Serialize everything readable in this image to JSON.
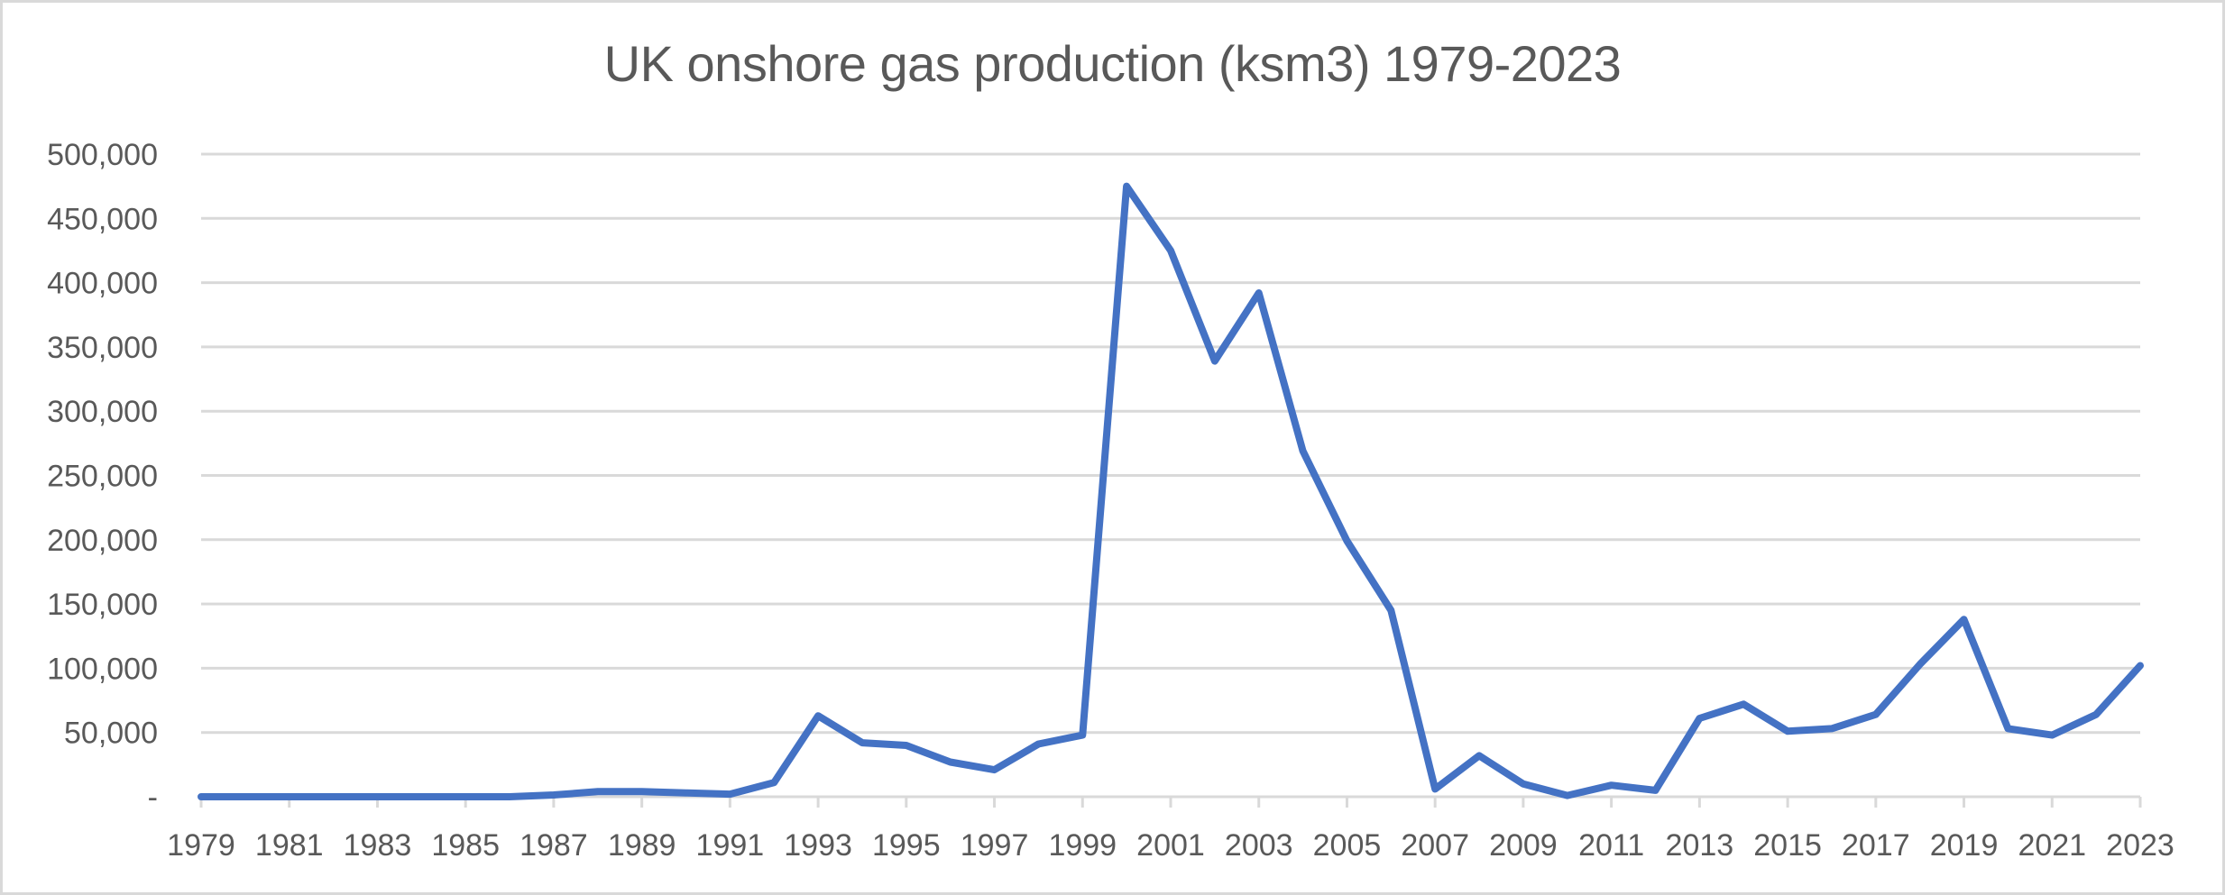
{
  "chart_data": {
    "type": "line",
    "title": "UK onshore gas production (ksm3) 1979-2023",
    "xlabel": "",
    "ylabel": "",
    "ylim": [
      0,
      500000
    ],
    "grid": true,
    "legend": null,
    "y_ticks": [
      {
        "value": 0,
        "label": "-"
      },
      {
        "value": 50000,
        "label": "50,000"
      },
      {
        "value": 100000,
        "label": "100,000"
      },
      {
        "value": 150000,
        "label": "150,000"
      },
      {
        "value": 200000,
        "label": "200,000"
      },
      {
        "value": 250000,
        "label": "250,000"
      },
      {
        "value": 300000,
        "label": "300,000"
      },
      {
        "value": 350000,
        "label": "350,000"
      },
      {
        "value": 400000,
        "label": "400,000"
      },
      {
        "value": 450000,
        "label": "450,000"
      },
      {
        "value": 500000,
        "label": "500,000"
      }
    ],
    "x_tick_labels": [
      "1979",
      "1981",
      "1983",
      "1985",
      "1987",
      "1989",
      "1991",
      "1993",
      "1995",
      "1997",
      "1999",
      "2001",
      "2003",
      "2005",
      "2007",
      "2009",
      "2011",
      "2013",
      "2015",
      "2017",
      "2019",
      "2021",
      "2023"
    ],
    "categories": [
      1979,
      1980,
      1981,
      1982,
      1983,
      1984,
      1985,
      1986,
      1987,
      1988,
      1989,
      1990,
      1991,
      1992,
      1993,
      1994,
      1995,
      1996,
      1997,
      1998,
      1999,
      2000,
      2001,
      2002,
      2003,
      2004,
      2005,
      2006,
      2007,
      2008,
      2009,
      2010,
      2011,
      2012,
      2013,
      2014,
      2015,
      2016,
      2017,
      2018,
      2019,
      2020,
      2021,
      2022,
      2023
    ],
    "series": [
      {
        "name": "UK onshore gas production (ksm3)",
        "color": "#4472C4",
        "values": [
          0,
          0,
          0,
          0,
          0,
          0,
          0,
          0,
          1400,
          4000,
          4000,
          3000,
          2000,
          11000,
          63000,
          42000,
          40000,
          27000,
          21000,
          41000,
          48000,
          475000,
          425000,
          339000,
          392000,
          269000,
          199000,
          145000,
          6000,
          32000,
          10000,
          1000,
          9000,
          5000,
          61000,
          72000,
          51000,
          53000,
          64000,
          103000,
          138000,
          53000,
          48000,
          64000,
          102000
        ]
      }
    ]
  },
  "colors": {
    "line": "#4472C4",
    "grid": "#d9d9d9",
    "text": "#595959",
    "border": "#d9d9d9"
  }
}
